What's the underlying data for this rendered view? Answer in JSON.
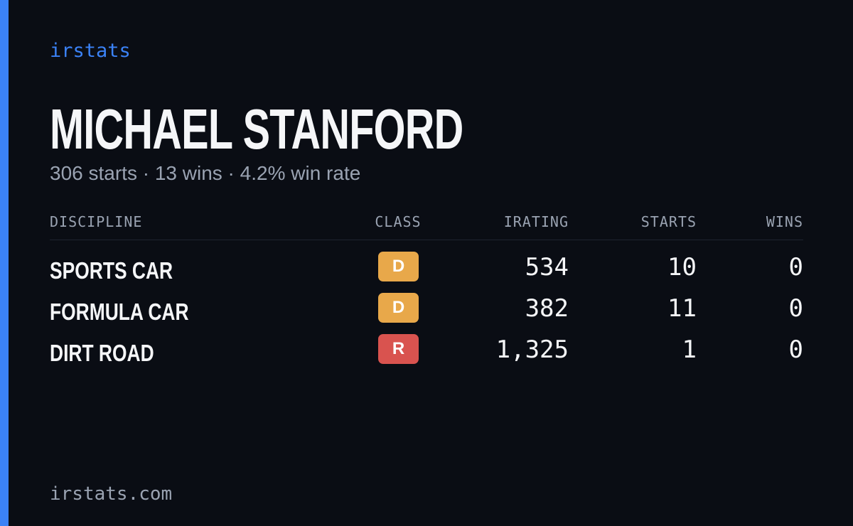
{
  "brand": "irstats",
  "profile": {
    "name": "MICHAEL STANFORD",
    "summary": "306 starts · 13 wins · 4.2% win rate"
  },
  "table": {
    "headers": [
      "DISCIPLINE",
      "CLASS",
      "IRATING",
      "STARTS",
      "WINS"
    ],
    "rows": [
      {
        "discipline": "SPORTS CAR",
        "class": "D",
        "class_color": "#e8a84a",
        "irating": "534",
        "starts": "10",
        "wins": "0"
      },
      {
        "discipline": "FORMULA CAR",
        "class": "D",
        "class_color": "#e8a84a",
        "irating": "382",
        "starts": "11",
        "wins": "0"
      },
      {
        "discipline": "DIRT ROAD",
        "class": "R",
        "class_color": "#d9534f",
        "irating": "1,325",
        "starts": "1",
        "wins": "0"
      }
    ]
  },
  "footer": "irstats.com"
}
